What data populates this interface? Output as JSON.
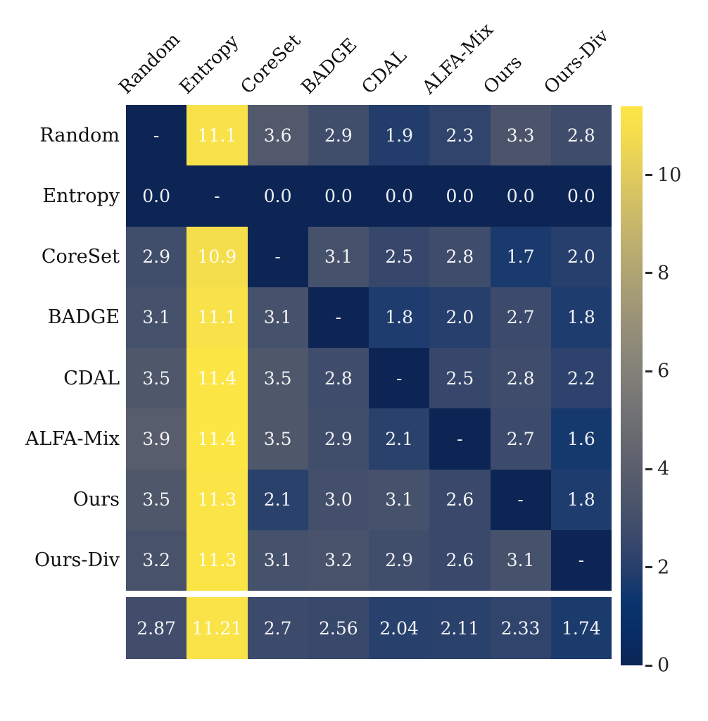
{
  "chart_data": {
    "type": "heatmap",
    "title": "",
    "columns": [
      "Random",
      "Entropy",
      "CoreSet",
      "BADGE",
      "CDAL",
      "ALFA-Mix",
      "Ours",
      "Ours-Div"
    ],
    "rows": [
      "Random",
      "Entropy",
      "CoreSet",
      "BADGE",
      "CDAL",
      "ALFA-Mix",
      "Ours",
      "Ours-Div"
    ],
    "matrix": [
      [
        "-",
        "11.1",
        "3.6",
        "2.9",
        "1.9",
        "2.3",
        "3.3",
        "2.8"
      ],
      [
        "0.0",
        "-",
        "0.0",
        "0.0",
        "0.0",
        "0.0",
        "0.0",
        "0.0"
      ],
      [
        "2.9",
        "10.9",
        "-",
        "3.1",
        "2.5",
        "2.8",
        "1.7",
        "2.0"
      ],
      [
        "3.1",
        "11.1",
        "3.1",
        "-",
        "1.8",
        "2.0",
        "2.7",
        "1.8"
      ],
      [
        "3.5",
        "11.4",
        "3.5",
        "2.8",
        "-",
        "2.5",
        "2.8",
        "2.2"
      ],
      [
        "3.9",
        "11.4",
        "3.5",
        "2.9",
        "2.1",
        "-",
        "2.7",
        "1.6"
      ],
      [
        "3.5",
        "11.3",
        "2.1",
        "3.0",
        "3.1",
        "2.6",
        "-",
        "1.8"
      ],
      [
        "3.2",
        "11.3",
        "3.1",
        "3.2",
        "2.9",
        "2.6",
        "3.1",
        "-"
      ]
    ],
    "summary_row": [
      "2.87",
      "11.21",
      "2.7",
      "2.56",
      "2.04",
      "2.11",
      "2.33",
      "1.74"
    ],
    "diagonal_marker": "-",
    "colorbar": {
      "vmin": 0,
      "vmax": 11.4,
      "ticks": [
        "0",
        "2",
        "4",
        "6",
        "8",
        "10"
      ],
      "position": "right"
    },
    "colormap": {
      "name": "cividis",
      "stops": [
        [
          0.0,
          "#0c2555"
        ],
        [
          0.059,
          "#072d66"
        ],
        [
          0.118,
          "#0b356e"
        ],
        [
          0.176,
          "#273f6c"
        ],
        [
          0.235,
          "#3c4a6b"
        ],
        [
          0.294,
          "#4c556b"
        ],
        [
          0.353,
          "#5b5f6d"
        ],
        [
          0.412,
          "#686a70"
        ],
        [
          0.471,
          "#757575"
        ],
        [
          0.529,
          "#838178"
        ],
        [
          0.588,
          "#928c78"
        ],
        [
          0.647,
          "#a19876"
        ],
        [
          0.706,
          "#b0a572"
        ],
        [
          0.765,
          "#c0b16d"
        ],
        [
          0.824,
          "#d1bf66"
        ],
        [
          0.882,
          "#e1cc5c"
        ],
        [
          0.941,
          "#f3db4f"
        ],
        [
          1.0,
          "#fce645"
        ]
      ]
    },
    "annotation_text_color": "#f0f2f4",
    "axis_label_color": "#111111",
    "layout": {
      "grid": false,
      "legend": "none",
      "summary_row_gap": true
    }
  }
}
